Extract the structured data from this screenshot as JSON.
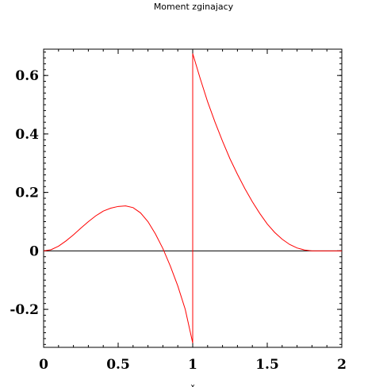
{
  "chart_data": {
    "type": "line",
    "title": "Moment zginajacy",
    "xlabel": "x",
    "ylabel": "",
    "xlim": [
      0,
      2
    ],
    "ylim": [
      -0.33,
      0.69
    ],
    "x_ticks": [
      0,
      0.5,
      1,
      1.5,
      2
    ],
    "x_tick_labels": [
      "0",
      "0.5",
      "1",
      "1.5",
      "2"
    ],
    "y_ticks": [
      -0.2,
      0,
      0.2,
      0.4,
      0.6
    ],
    "y_tick_labels": [
      "-0.2",
      "0",
      "0.2",
      "0.4",
      "0.6"
    ],
    "grid": false,
    "series": [
      {
        "color": "#ff0000",
        "points": [
          [
            0,
            0
          ],
          [
            0.05,
            0.004
          ],
          [
            0.1,
            0.016
          ],
          [
            0.15,
            0.034
          ],
          [
            0.2,
            0.055
          ],
          [
            0.25,
            0.078
          ],
          [
            0.3,
            0.1
          ],
          [
            0.35,
            0.12
          ],
          [
            0.4,
            0.136
          ],
          [
            0.45,
            0.146
          ],
          [
            0.5,
            0.152
          ],
          [
            0.55,
            0.154
          ],
          [
            0.6,
            0.148
          ],
          [
            0.65,
            0.13
          ],
          [
            0.7,
            0.1
          ],
          [
            0.75,
            0.058
          ],
          [
            0.8,
            0.008
          ],
          [
            0.85,
            -0.052
          ],
          [
            0.9,
            -0.12
          ],
          [
            0.95,
            -0.2
          ],
          [
            1.0,
            -0.315
          ],
          [
            1.0,
            0.675
          ],
          [
            1.05,
            0.59
          ],
          [
            1.1,
            0.51
          ],
          [
            1.15,
            0.44
          ],
          [
            1.2,
            0.375
          ],
          [
            1.25,
            0.315
          ],
          [
            1.3,
            0.262
          ],
          [
            1.35,
            0.213
          ],
          [
            1.4,
            0.168
          ],
          [
            1.45,
            0.128
          ],
          [
            1.5,
            0.092
          ],
          [
            1.55,
            0.063
          ],
          [
            1.6,
            0.04
          ],
          [
            1.65,
            0.022
          ],
          [
            1.7,
            0.01
          ],
          [
            1.75,
            0.003
          ],
          [
            1.8,
            0.0
          ],
          [
            1.85,
            0.0
          ],
          [
            1.9,
            0.0
          ],
          [
            1.95,
            0.0
          ],
          [
            2.0,
            0.0
          ]
        ]
      }
    ],
    "zero_line": true
  }
}
